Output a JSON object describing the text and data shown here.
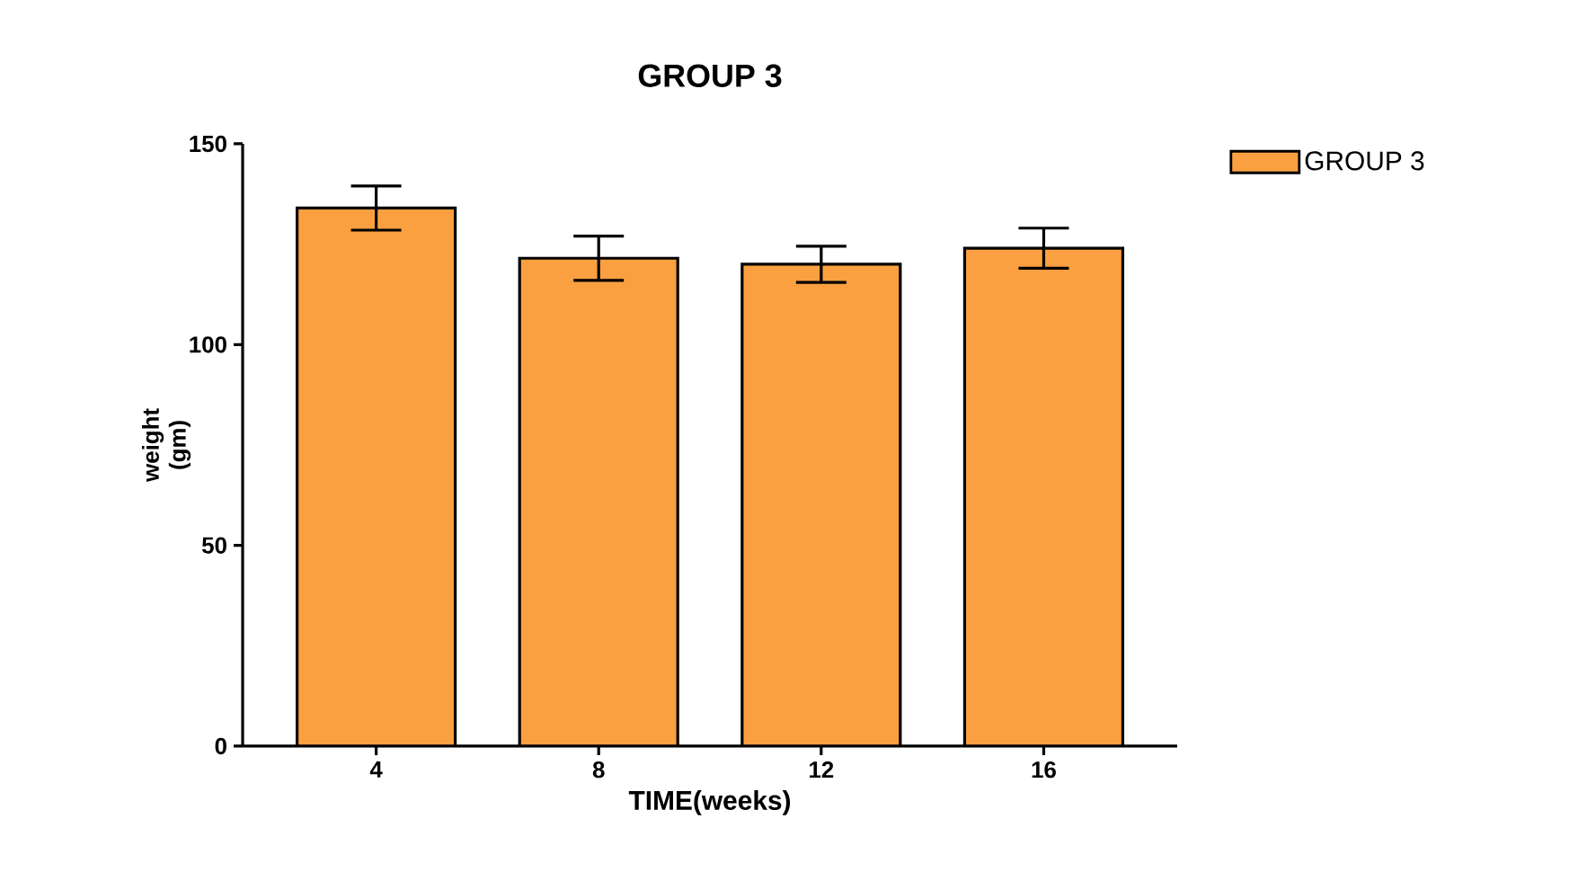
{
  "chart_data": {
    "type": "bar",
    "title": "GROUP 3",
    "xlabel": "TIME(weeks)",
    "ylabel": "weight (gm)",
    "categories": [
      "4",
      "8",
      "12",
      "16"
    ],
    "series": [
      {
        "name": "GROUP 3",
        "color": "#fba040",
        "values": [
          134,
          121.5,
          120,
          124
        ],
        "errors": [
          5.5,
          5.5,
          4.5,
          5
        ]
      }
    ],
    "ylim": [
      0,
      150
    ],
    "yticks": [
      0,
      50,
      100,
      150
    ],
    "legend": "top right",
    "grid": false
  }
}
